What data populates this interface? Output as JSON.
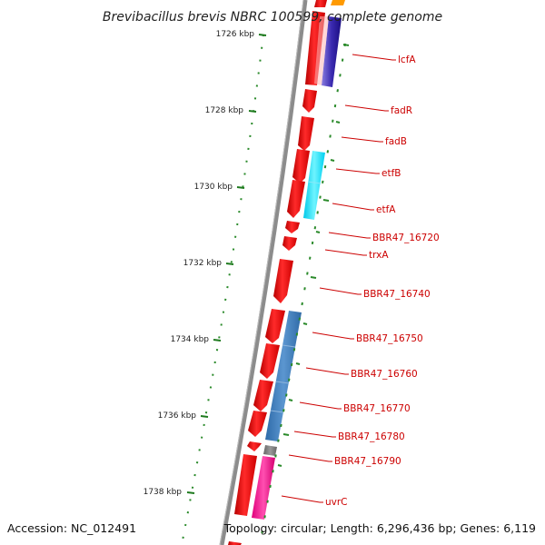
{
  "title": "Brevibacillus brevis NBRC 100599, complete genome",
  "footer": {
    "accession": "Accession: NC_012491",
    "summary": "Topology: circular; Length: 6,296,436 bp; Genes: 6,119"
  },
  "ticks": [
    "1726 kbp",
    "1728 kbp",
    "1730 kbp",
    "1732 kbp",
    "1734 kbp",
    "1736 kbp",
    "1738 kbp"
  ],
  "genes": [
    {
      "label": "lcfA",
      "strand": "forward",
      "cog_color": "#4b2ea0"
    },
    {
      "label": "fadR",
      "strand": "forward",
      "cog_color": null
    },
    {
      "label": "fadB",
      "strand": "forward",
      "cog_color": null
    },
    {
      "label": "etfB",
      "strand": "forward",
      "cog_color": "#00e0ff"
    },
    {
      "label": "etfA",
      "strand": "forward",
      "cog_color": "#00e0ff"
    },
    {
      "label": "BBR47_16720",
      "strand": "forward",
      "cog_color": null
    },
    {
      "label": "trxA",
      "strand": "forward",
      "cog_color": null
    },
    {
      "label": "BBR47_16740",
      "strand": "forward",
      "cog_color": null
    },
    {
      "label": "BBR47_16750",
      "strand": "forward",
      "cog_color": "#3f7fc0"
    },
    {
      "label": "BBR47_16760",
      "strand": "forward",
      "cog_color": "#3f7fc0"
    },
    {
      "label": "BBR47_16770",
      "strand": "forward",
      "cog_color": "#3f7fc0"
    },
    {
      "label": "BBR47_16780",
      "strand": "forward",
      "cog_color": "#3f7fc0"
    },
    {
      "label": "BBR47_16790",
      "strand": "forward",
      "cog_color": "#808080"
    },
    {
      "label": "uvrC",
      "strand": "forward",
      "cog_color": "#ff1493"
    }
  ],
  "colors": {
    "gene_fill": "#ee0000",
    "backbone": "#888888",
    "gc_skew_ticks": "#2a8a2a",
    "label_text": "#cc0000"
  }
}
